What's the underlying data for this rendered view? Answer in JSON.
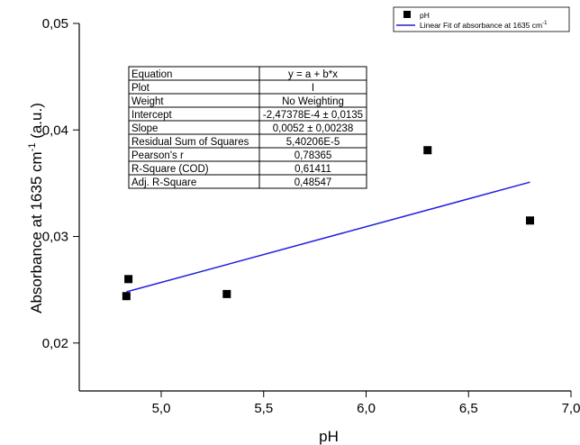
{
  "chart_data": {
    "type": "scatter",
    "title": "",
    "xlabel": "pH",
    "ylabel": "Absorbance at 1635 cm",
    "ylabel_superscript": "-1",
    "ylabel_suffix": " (a.u.)",
    "xlim": [
      4.6,
      7.0
    ],
    "ylim": [
      0.0155,
      0.05
    ],
    "x_ticks": [
      5.0,
      5.5,
      6.0,
      6.5,
      7.0
    ],
    "x_tick_labels": [
      "5,0",
      "5,5",
      "6,0",
      "6,5",
      "7,0"
    ],
    "y_ticks": [
      0.02,
      0.03,
      0.04,
      0.05
    ],
    "y_tick_labels": [
      "0,02",
      "0,03",
      "0,04",
      "0,05"
    ],
    "series": [
      {
        "name": "pH",
        "kind": "scatter",
        "color": "#000000",
        "x": [
          4.83,
          4.84,
          5.32,
          6.3,
          6.8
        ],
        "y": [
          0.0244,
          0.026,
          0.0246,
          0.0381,
          0.0315
        ]
      },
      {
        "name": "Linear Fit of absorbance at 1635 cm",
        "name_superscript": "-1",
        "kind": "line",
        "color": "#1f1fe0",
        "x": [
          4.83,
          6.8
        ],
        "y": [
          0.0248,
          0.0351
        ]
      }
    ],
    "legend_position": "top-right",
    "grid": false,
    "fit_table": {
      "headers": [
        "Equation",
        "y = a + b*x"
      ],
      "rows": [
        [
          "Plot",
          "I"
        ],
        [
          "Weight",
          "No Weighting"
        ],
        [
          "Intercept",
          "-2,47378E-4 ± 0,0135"
        ],
        [
          "Slope",
          "0,0052 ± 0,00238"
        ],
        [
          "Residual Sum of Squares",
          "5,40206E-5"
        ],
        [
          "Pearson's r",
          "0,78365"
        ],
        [
          "R-Square (COD)",
          "0,61411"
        ],
        [
          "Adj. R-Square",
          "0,48547"
        ]
      ]
    }
  }
}
